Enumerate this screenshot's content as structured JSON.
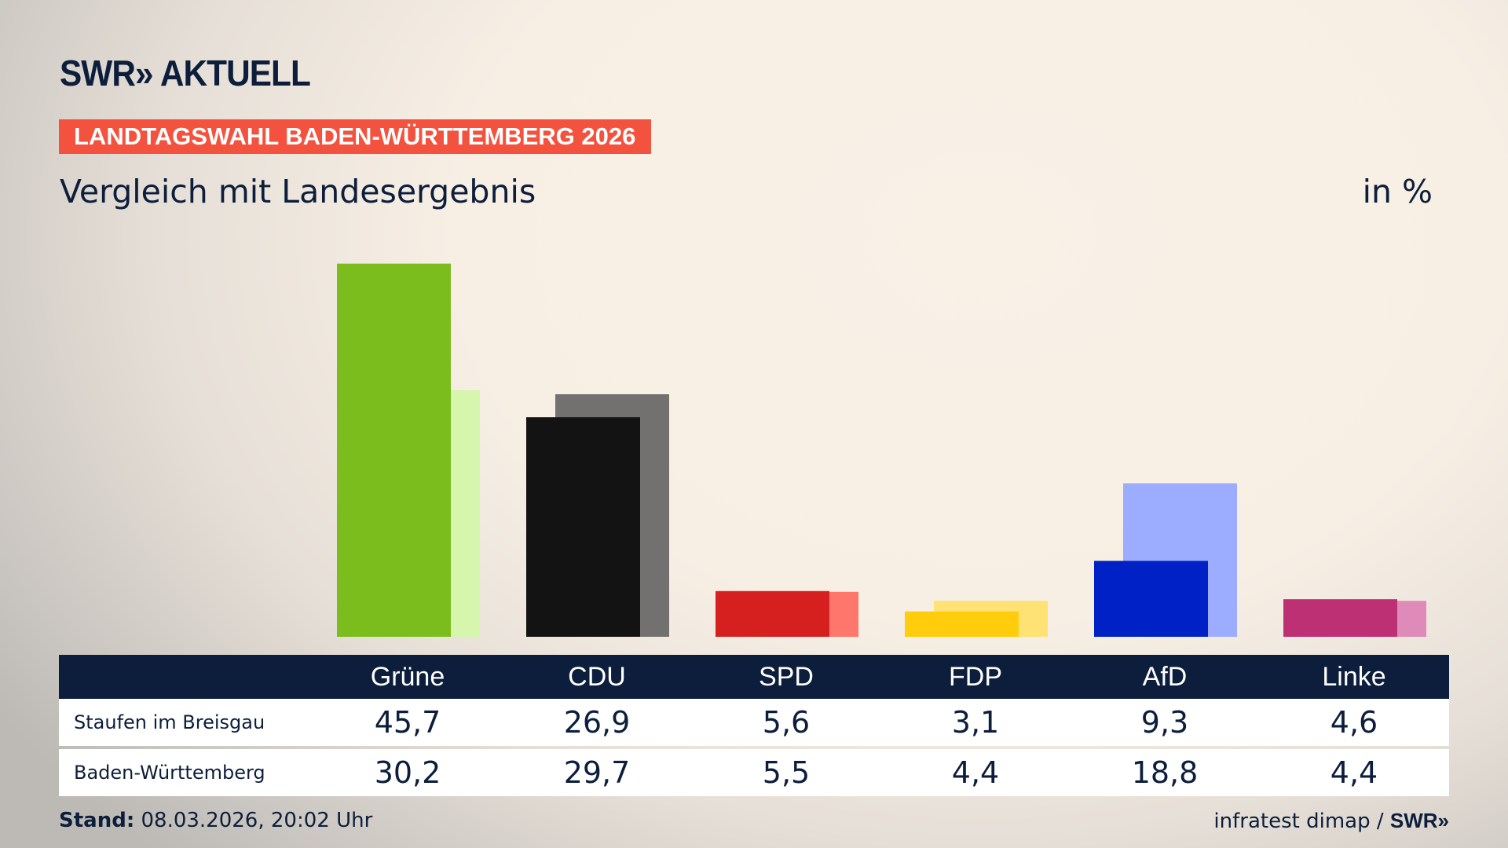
{
  "header": {
    "logo": "SWR» AKTUELL",
    "banner": "LANDTAGSWAHL BADEN-WÜRTTEMBERG 2026",
    "subtitle": "Vergleich mit Landesergebnis",
    "unit": "in %"
  },
  "chart_data": {
    "type": "bar",
    "categories": [
      "Grüne",
      "CDU",
      "SPD",
      "FDP",
      "AfD",
      "Linke"
    ],
    "series": [
      {
        "name": "Staufen im Breisgau",
        "values": [
          45.7,
          26.9,
          5.6,
          3.1,
          9.3,
          4.6
        ],
        "colors": [
          "#7abd1d",
          "#131313",
          "#d6201f",
          "#ffcd0c",
          "#0021c6",
          "#bd3074"
        ]
      },
      {
        "name": "Baden-Württemberg",
        "values": [
          30.2,
          29.7,
          5.5,
          4.4,
          18.8,
          4.4
        ],
        "colors": [
          "#d6f5ad",
          "#737170",
          "#ff776c",
          "#ffe274",
          "#9cadff",
          "#de8bb9"
        ]
      }
    ],
    "value_labels": [
      [
        "45,7",
        "26,9",
        "5,6",
        "3,1",
        "9,3",
        "4,6"
      ],
      [
        "30,2",
        "29,7",
        "5,5",
        "4,4",
        "18,8",
        "4,4"
      ]
    ]
  },
  "footer": {
    "stand_label": "Stand:",
    "stand_value": " 08.03.2026, 20:02 Uhr",
    "source": "infratest dimap / ",
    "source_logo": "SWR»"
  }
}
